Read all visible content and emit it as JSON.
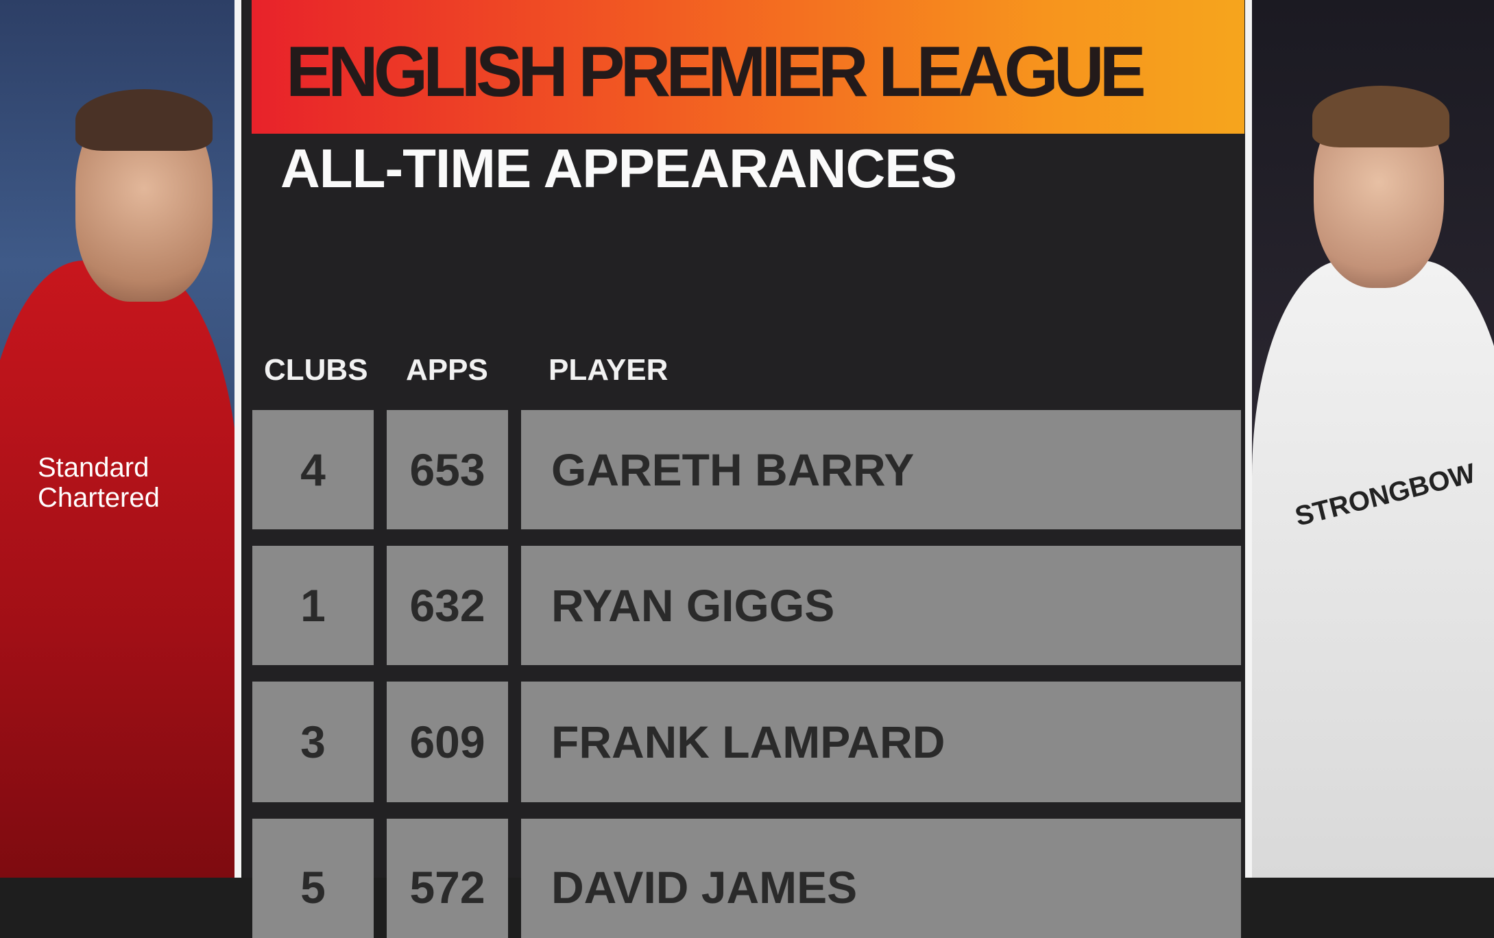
{
  "header": {
    "title": "ENGLISH PREMIER LEAGUE",
    "subtitle": "ALL-TIME APPEARANCES"
  },
  "table": {
    "columns": [
      "CLUBS",
      "APPS",
      "PLAYER"
    ],
    "rows": [
      {
        "clubs": "4",
        "apps": "653",
        "player": "GARETH BARRY"
      },
      {
        "clubs": "1",
        "apps": "632",
        "player": "RYAN GIGGS"
      },
      {
        "clubs": "3",
        "apps": "609",
        "player": "FRANK LAMPARD"
      },
      {
        "clubs": "5",
        "apps": "572",
        "player": "DAVID JAMES"
      }
    ]
  },
  "photos": {
    "left_sponsor": "Standard Chartered",
    "right_sponsor": "STRONGBOW"
  },
  "colors": {
    "banner_start": "#e8222a",
    "banner_end": "#f6a51d",
    "panel_bg": "#222123",
    "cell_bg": "#8a8a8a"
  }
}
